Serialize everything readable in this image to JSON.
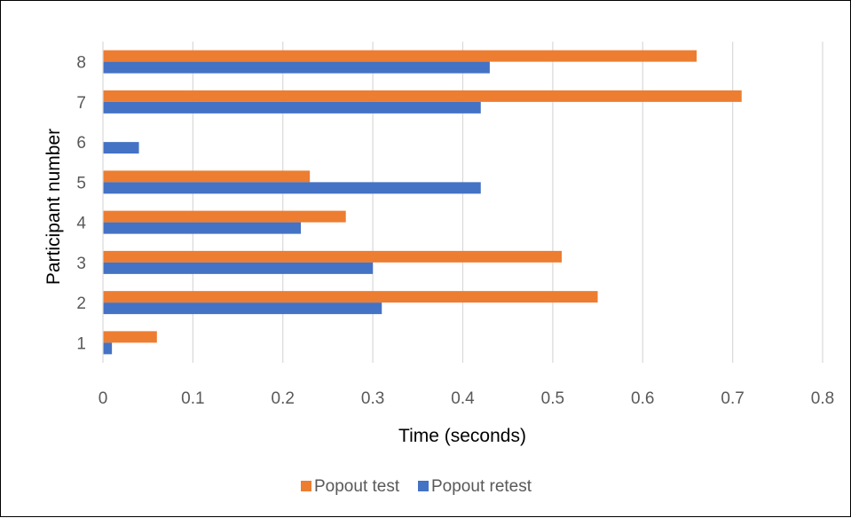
{
  "chart_data": {
    "type": "bar",
    "orientation": "horizontal",
    "title": "",
    "xlabel": "Time (seconds)",
    "ylabel": "Participant number",
    "categories": [
      "1",
      "2",
      "3",
      "4",
      "5",
      "6",
      "7",
      "8"
    ],
    "x_ticks": [
      "0",
      "0.1",
      "0.2",
      "0.3",
      "0.4",
      "0.5",
      "0.6",
      "0.7",
      "0.8"
    ],
    "xlim": [
      0,
      0.8
    ],
    "grid": "vertical",
    "legend_position": "bottom",
    "series": [
      {
        "name": "Popout test",
        "color": "#ED7D31",
        "values": [
          0.06,
          0.55,
          0.51,
          0.27,
          0.23,
          0,
          0.71,
          0.66
        ]
      },
      {
        "name": "Popout retest",
        "color": "#4472C4",
        "values": [
          0.01,
          0.31,
          0.3,
          0.22,
          0.42,
          0.04,
          0.42,
          0.43
        ]
      }
    ]
  }
}
